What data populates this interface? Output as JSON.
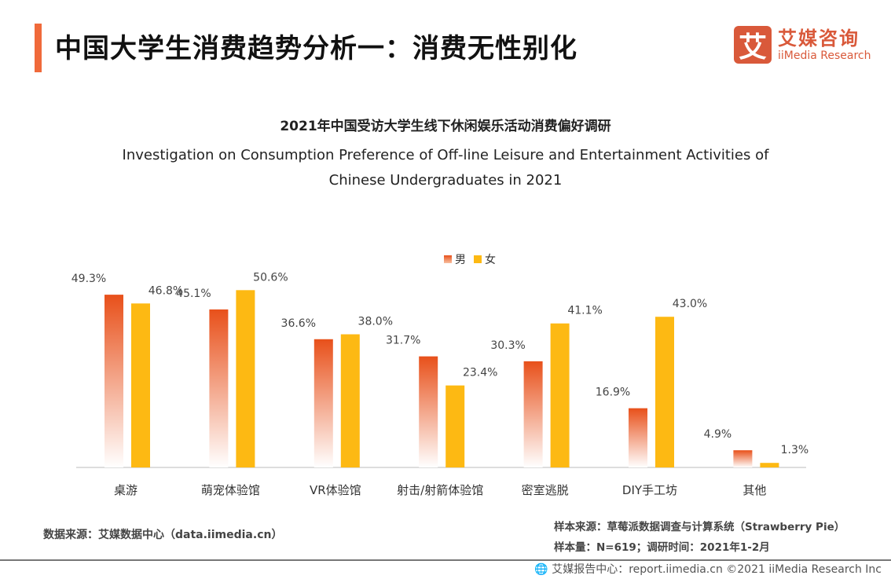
{
  "header": {
    "title": "中国大学生消费趋势分析一：消费无性别化"
  },
  "logo": {
    "mark": "艾",
    "cn": "艾媒咨询",
    "en": "iiMedia Research"
  },
  "chart_data": {
    "type": "bar",
    "title": "2021年中国受访大学生线下休闲娱乐活动消费偏好调研",
    "subtitle": "Investigation on Consumption Preference of Off-line Leisure and Entertainment Activities of Chinese Undergraduates in 2021",
    "categories": [
      "桌游",
      "萌宠体验馆",
      "VR体验馆",
      "射击/射箭体验馆",
      "密室逃脱",
      "DIY手工坊",
      "其他"
    ],
    "series": [
      {
        "name": "男",
        "color": "#e8501a",
        "values": [
          49.3,
          45.1,
          36.6,
          31.7,
          30.3,
          16.9,
          4.9
        ]
      },
      {
        "name": "女",
        "color": "#fdb913",
        "values": [
          46.8,
          50.6,
          38.0,
          23.4,
          41.1,
          43.0,
          1.3
        ]
      }
    ],
    "unit": "%",
    "ylim": [
      0,
      55
    ],
    "grid": false,
    "legend": "top-center"
  },
  "footer": {
    "source": "数据来源：艾媒数据中心（data.iimedia.cn）",
    "sample_source": "样本来源：草莓派数据调查与计算系统（Strawberry Pie）",
    "sample_size": "样本量：N=619；调研时间：2021年1-2月",
    "report": "艾媒报告中心：report.iimedia.cn  ©2021  iiMedia Research  Inc"
  }
}
